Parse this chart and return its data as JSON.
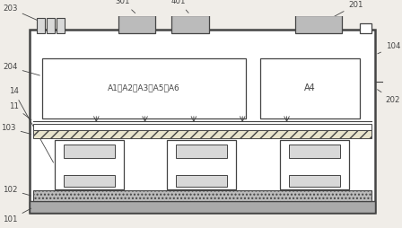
{
  "fig_width": 4.48,
  "fig_height": 2.54,
  "dpi": 100,
  "bg_color": "#f0ede8",
  "line_color": "#444444",
  "gray_dark": "#aaaaaa",
  "gray_mid": "#bbbbbb",
  "gray_light": "#d8d8d8",
  "white": "#ffffff",
  "hatch_bg": "#e8e4cc"
}
